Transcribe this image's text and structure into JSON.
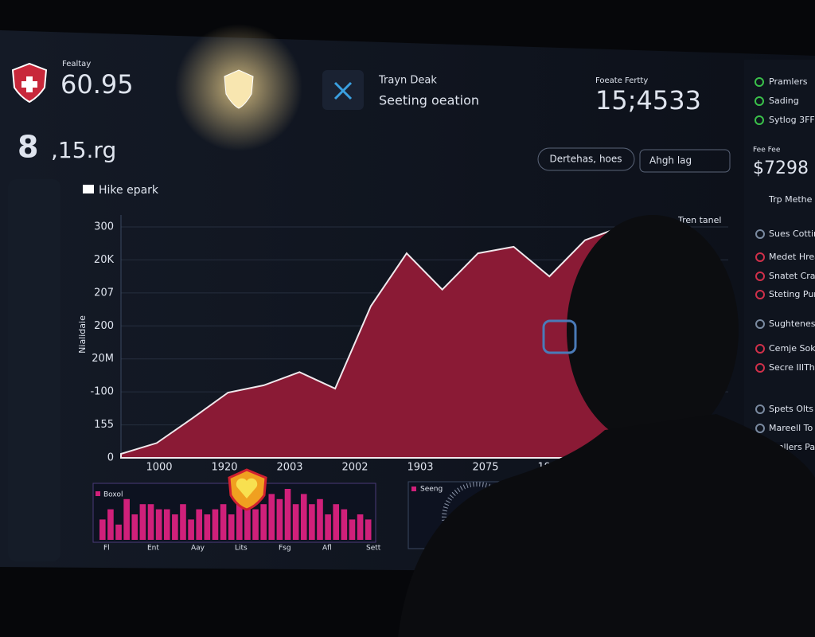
{
  "header": {
    "label": "Fealtay",
    "value": "60.95",
    "stat_value": "8",
    "stat_text": ",15.rg"
  },
  "center_card": {
    "title": "Trayn Deak",
    "subtitle": "Seeting oeation"
  },
  "metric": {
    "label": "Foeate Fertty",
    "value": "15;4533"
  },
  "filters": [
    "Dertehas, hoes",
    "Ahgh lag"
  ],
  "status_list": [
    "Pramlers",
    "Sading",
    "Sytlog 3FF"
  ],
  "side": {
    "label": "Fee Fee",
    "value": "$7298",
    "link": "Trp Methe"
  },
  "side_items": [
    "Sues Cottin",
    "Medet Hrea",
    "Snatet Craik",
    "Steting Pun",
    "Sughtenes",
    "Cemje Soke",
    "Secre IIITh",
    "Spets Olts",
    "Mareell To",
    "Tonllers Pa"
  ],
  "chart_data": [
    {
      "type": "area",
      "y_label": "Nialidaie",
      "annotation": "Tren tanel",
      "y_axis_labels": [
        "300",
        "20K",
        "207",
        "200",
        "20M",
        "-100",
        "155",
        "0"
      ],
      "x_axis_labels": [
        "1000",
        "1920",
        "2003",
        "2002",
        "1903",
        "2075",
        "1973"
      ],
      "ylim": [
        0,
        7
      ],
      "series": [
        {
          "name": "Hike epark",
          "color": "#8a1a35",
          "values": [
            0.12,
            0.45,
            1.2,
            1.98,
            2.2,
            2.6,
            2.1,
            4.6,
            6.2,
            5.1,
            6.2,
            6.4,
            5.5,
            6.6,
            7.0
          ]
        }
      ]
    },
    {
      "type": "bar",
      "ylim": [
        0,
        10
      ],
      "x_axis_labels": [
        "Fl",
        "Ent",
        "Aay",
        "Lits",
        "Fsg",
        "Afl",
        "Sett"
      ],
      "series": [
        {
          "name": "Boxol",
          "color": "#d0207a",
          "values": [
            4,
            6,
            3,
            8,
            5,
            7,
            7,
            6,
            6,
            5,
            7,
            4,
            6,
            5,
            6,
            7,
            5,
            7,
            8,
            6,
            7,
            9,
            8,
            10,
            7,
            9,
            7,
            8,
            5,
            7,
            6,
            4,
            5,
            4
          ]
        }
      ]
    },
    {
      "type": "gauge",
      "legend": "Seeng"
    }
  ]
}
